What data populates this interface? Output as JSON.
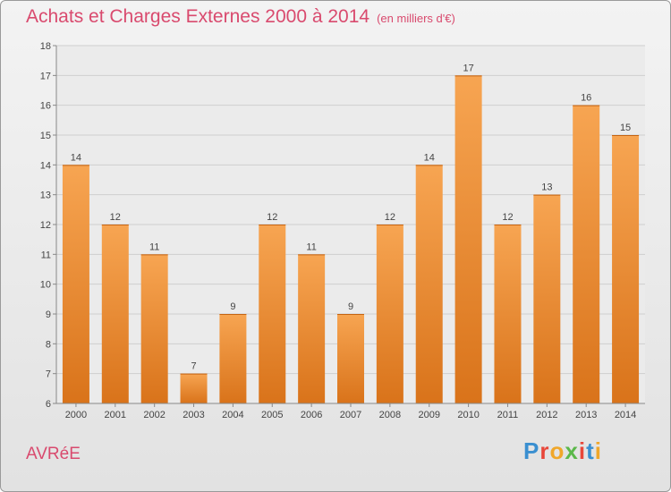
{
  "header": {
    "title": "Achats et Charges Externes 2000 à 2014",
    "subtitle": "(en milliers d'€)"
  },
  "footer": {
    "commune": "AVRéE",
    "logo_letters": [
      "P",
      "r",
      "o",
      "x",
      "i",
      "t",
      "i"
    ],
    "logo_colors": [
      "#3a8fd0",
      "#e8473a",
      "#f0a72a",
      "#5bb84a",
      "#e8473a",
      "#3a8fd0",
      "#f0a72a"
    ]
  },
  "chart_data": {
    "type": "bar",
    "categories": [
      "2000",
      "2001",
      "2002",
      "2003",
      "2004",
      "2005",
      "2006",
      "2007",
      "2008",
      "2009",
      "2010",
      "2011",
      "2012",
      "2013",
      "2014"
    ],
    "values": [
      14,
      12,
      11,
      7,
      9,
      12,
      11,
      9,
      12,
      14,
      17,
      12,
      13,
      16,
      15
    ],
    "ylim": [
      6,
      18
    ],
    "yticks": [
      6,
      7,
      8,
      9,
      10,
      11,
      12,
      13,
      14,
      15,
      16,
      17,
      18
    ],
    "grid": true,
    "bar_color": "#f0922e"
  }
}
